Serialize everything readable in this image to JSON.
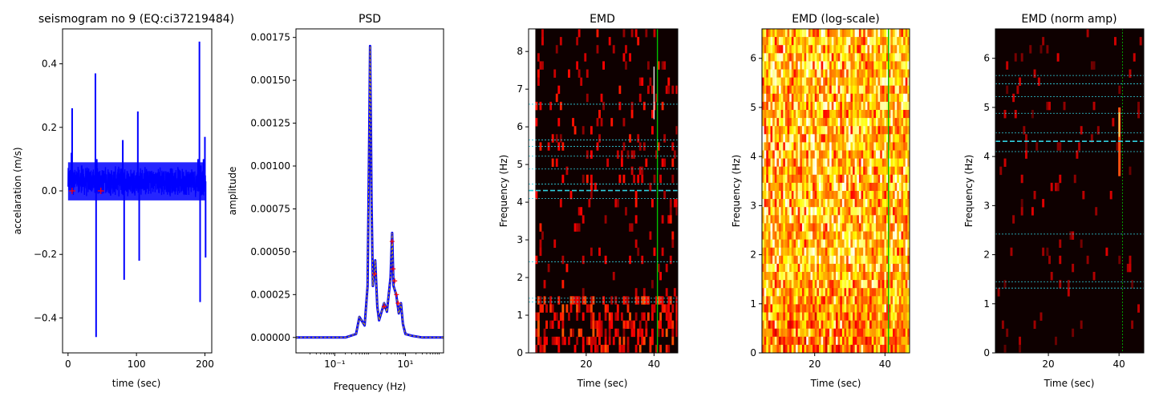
{
  "chart_data": [
    {
      "id": "seismogram",
      "type": "line",
      "title": "seismogram no 9 (EQ:ci37219484)",
      "xlabel": "time (sec)",
      "ylabel": "accelaration (m/s)",
      "xlim": [
        -8,
        210
      ],
      "ylim": [
        -0.51,
        0.51
      ],
      "xticks": [
        0,
        100,
        200
      ],
      "xtick_labels": [
        "0",
        "100",
        "200"
      ],
      "yticks": [
        -0.4,
        -0.2,
        0.0,
        0.2,
        0.4
      ],
      "ytick_labels": [
        "−0.4",
        "−0.2",
        "0.0",
        "0.2",
        "0.4"
      ],
      "series": [
        {
          "color": "#0000ff",
          "x": [
            0,
            5,
            6,
            10,
            20,
            30,
            38,
            40,
            41,
            42,
            45,
            60,
            78,
            80,
            82,
            100,
            102,
            104,
            120,
            140,
            160,
            180,
            190,
            192,
            193,
            194,
            196,
            198,
            200,
            201
          ],
          "y": [
            0.03,
            0.12,
            0.26,
            0.05,
            0.08,
            0.06,
            0.04,
            0.37,
            -0.46,
            0.1,
            0.06,
            0.05,
            0.04,
            0.16,
            -0.28,
            0.05,
            0.25,
            -0.22,
            0.04,
            0.06,
            0.04,
            0.05,
            0.1,
            0.47,
            -0.35,
            0.08,
            0.05,
            0.1,
            0.17,
            -0.21
          ]
        }
      ],
      "markers": {
        "color": "#ff0000",
        "x": [
          6,
          48
        ],
        "y": [
          0.0,
          0.0
        ]
      }
    },
    {
      "id": "psd",
      "type": "line",
      "title": "PSD",
      "xlabel": "Frequency (Hz)",
      "ylabel": "amplitude",
      "xscale": "log",
      "xlim": [
        0.008,
        120
      ],
      "ylim": [
        -9e-05,
        0.0018
      ],
      "xticks": [
        0.1,
        10
      ],
      "xtick_labels": [
        "10⁻¹",
        "10¹"
      ],
      "yticks": [
        0.0,
        0.00025,
        0.0005,
        0.00075,
        0.001,
        0.00125,
        0.0015,
        0.00175
      ],
      "ytick_labels": [
        "0.00000",
        "0.00025",
        "0.00050",
        "0.00075",
        "0.00100",
        "0.00125",
        "0.00150",
        "0.00175"
      ],
      "series": [
        {
          "color": "#0000ff",
          "x": [
            0.008,
            0.2,
            0.4,
            0.5,
            0.7,
            0.85,
            0.95,
            1.0,
            1.05,
            1.1,
            1.2,
            1.4,
            1.6,
            1.8,
            2.5,
            3.0,
            3.8,
            4.2,
            4.6,
            5.5,
            6.5,
            7.5,
            8.5,
            10,
            15,
            30,
            120
          ],
          "y": [
            0.0,
            0.0,
            2e-05,
            0.00012,
            7e-05,
            0.0003,
            0.0012,
            0.0017,
            0.0013,
            0.0008,
            0.0003,
            0.00045,
            0.00018,
            0.0001,
            0.0002,
            0.00015,
            0.00035,
            0.00061,
            0.0003,
            0.00025,
            0.00014,
            0.0002,
            8e-05,
            2e-05,
            1e-05,
            0.0,
            0.0
          ]
        }
      ],
      "markers": {
        "color": "#ff0000",
        "x": [
          1.35,
          2.5,
          4.2,
          4.5,
          5.0,
          5.6,
          6.2
        ],
        "y": [
          0.00037,
          0.00018,
          0.00056,
          0.0004,
          0.00033,
          0.00025,
          0.0002
        ]
      }
    },
    {
      "id": "emd",
      "type": "heatmap",
      "title": "EMD",
      "xlabel": "Time (sec)",
      "ylabel": "Frequency (Hz)",
      "xlim": [
        3,
        47
      ],
      "ylim": [
        0,
        8.6
      ],
      "xticks": [
        20,
        40
      ],
      "xtick_labels": [
        "20",
        "40"
      ],
      "yticks": [
        0,
        1,
        2,
        3,
        4,
        5,
        6,
        7,
        8
      ],
      "ytick_labels": [
        "0",
        "1",
        "2",
        "3",
        "4",
        "5",
        "6",
        "7",
        "8"
      ],
      "palette": "hot-dark",
      "data_start_x": 5,
      "hlines": [
        1.35,
        1.45,
        2.42,
        4.1,
        4.48,
        4.88,
        5.22,
        5.48,
        5.65,
        6.6
      ],
      "thick_hline": 4.31,
      "vline": 41
    },
    {
      "id": "emd_log",
      "type": "heatmap",
      "title": "EMD (log-scale)",
      "xlabel": "Time (sec)",
      "ylabel": "Frequency (Hz)",
      "xlim": [
        5,
        47
      ],
      "ylim": [
        0,
        6.6
      ],
      "xticks": [
        20,
        40
      ],
      "xtick_labels": [
        "20",
        "40"
      ],
      "yticks": [
        0,
        1,
        2,
        3,
        4,
        5,
        6
      ],
      "ytick_labels": [
        "0",
        "1",
        "2",
        "3",
        "4",
        "5",
        "6"
      ],
      "palette": "hot-bright",
      "vline": 41
    },
    {
      "id": "emd_norm",
      "type": "heatmap",
      "title": "EMD (norm amp)",
      "xlabel": "Time (sec)",
      "ylabel": "Frequency (Hz)",
      "xlim": [
        5,
        47
      ],
      "ylim": [
        0,
        6.6
      ],
      "xticks": [
        20,
        40
      ],
      "xtick_labels": [
        "20",
        "40"
      ],
      "yticks": [
        0,
        1,
        2,
        3,
        4,
        5,
        6
      ],
      "ytick_labels": [
        "0",
        "1",
        "2",
        "3",
        "4",
        "5",
        "6"
      ],
      "palette": "hot-black",
      "hlines": [
        1.32,
        1.45,
        2.42,
        4.1,
        4.48,
        4.88,
        5.22,
        5.48,
        5.65
      ],
      "thick_hline": 4.31,
      "vline": 41
    }
  ]
}
